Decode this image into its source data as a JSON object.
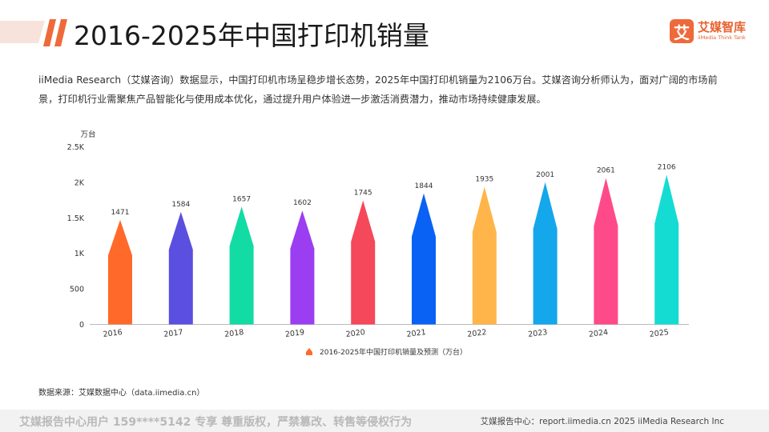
{
  "header": {
    "title": "2016-2025年中国打印机销量",
    "logo_badge": "艾",
    "logo_name": "艾媒智库",
    "logo_sub": "iiMedia Think Tank"
  },
  "intro": "iiMedia Research（艾媒咨询）数据显示，中国打印机市场呈稳步增长态势，2025年中国打印机销量为2106万台。艾媒咨询分析师认为，面对广阔的市场前景，打印机行业需聚焦产品智能化与使用成本优化，通过提升用户体验进一步激活消费潜力，推动市场持续健康发展。",
  "source": "数据来源：艾媒数据中心（data.iimedia.cn）",
  "footer": {
    "left": "艾媒报告中心用户 159****5142 专享 尊重版权，严禁篡改、转售等侵权行为",
    "right": "艾媒报告中心：report.iimedia.cn  2025 iiMedia Research Inc"
  },
  "chart_data": {
    "type": "bar",
    "title": "",
    "ylabel": "万台",
    "xlabel": "",
    "ylim": [
      0,
      2500
    ],
    "yticks": [
      0,
      500,
      1000,
      1500,
      2000,
      2500
    ],
    "ytick_labels": [
      "0",
      "500",
      "1K",
      "1.5K",
      "2K",
      "2.5K"
    ],
    "categories": [
      "2016",
      "2017",
      "2018",
      "2019",
      "2020",
      "2021",
      "2022",
      "2023",
      "2024",
      "2025"
    ],
    "series": [
      {
        "name": "2016-2025年中国打印机销量及预测（万台）",
        "values": [
          1471,
          1584,
          1657,
          1602,
          1745,
          1844,
          1935,
          2001,
          2061,
          2106
        ]
      }
    ],
    "value_labels": [
      "1471",
      "1584",
      "1657",
      "1602",
      "1745",
      "1844",
      "1935",
      "2001",
      "2061",
      "2106"
    ],
    "bar_colors": [
      "#ff6a2b",
      "#5b4fe0",
      "#12dca3",
      "#9b3df0",
      "#f5485a",
      "#0a62f5",
      "#ffb54a",
      "#14a7ec",
      "#ff4a8a",
      "#15dcd2"
    ],
    "legend_color": "#ff6a2b",
    "legend_position": "bottom-center",
    "grid": false
  }
}
